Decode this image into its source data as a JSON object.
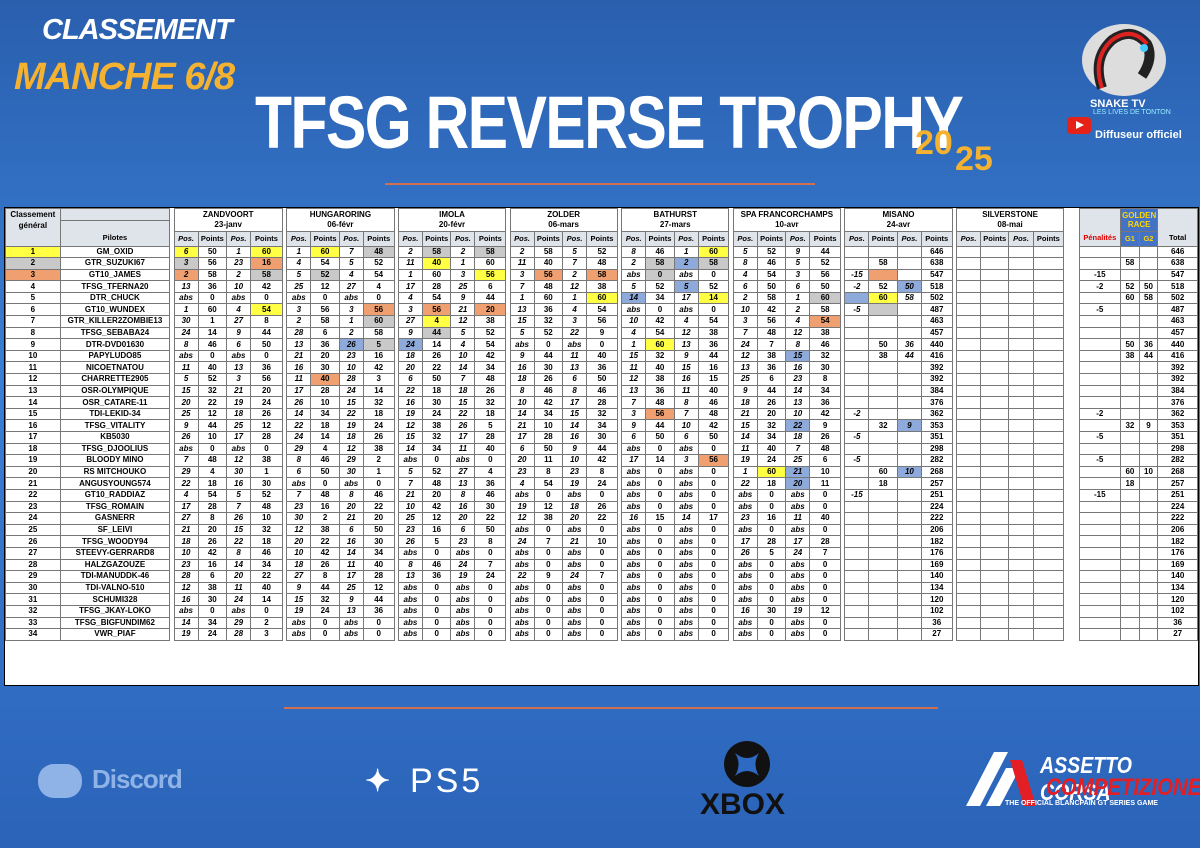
{
  "header": {
    "classement": "CLASSEMENT",
    "manche": "MANCHE 6/8",
    "title": "TFSG REVERSE TROPHY",
    "year_a": "20",
    "year_b": "25"
  },
  "broadcaster": {
    "name": "SNAKE TV",
    "subtitle": "LES LIVES DE TONTON",
    "label": "Diffuseur officiel"
  },
  "table": {
    "col_rank": "Classement général",
    "col_pilots": "Pilotes",
    "col_pos": "Pos.",
    "col_points": "Points",
    "col_penalties": "Pénalités",
    "golden_race": "GOLDEN RACE",
    "col_g1": "G1",
    "col_g2": "G2",
    "col_total": "Total",
    "races": [
      {
        "track": "ZANDVOORT",
        "date": "23-janv"
      },
      {
        "track": "HUNGARORING",
        "date": "06-févr"
      },
      {
        "track": "IMOLA",
        "date": "20-févr"
      },
      {
        "track": "ZOLDER",
        "date": "06-mars"
      },
      {
        "track": "BATHURST",
        "date": "27-mars"
      },
      {
        "track": "SPA FRANCORCHAMPS",
        "date": "10-avr"
      },
      {
        "track": "MISANO",
        "date": "24-avr"
      },
      {
        "track": "SILVERSTONE",
        "date": "08-mai"
      }
    ],
    "rows": [
      [
        "1",
        "GM_OXID",
        "6",
        "50",
        "1",
        "60",
        "1",
        "60",
        "7",
        "48",
        "2",
        "58",
        "2",
        "58",
        "2",
        "58",
        "5",
        "52",
        "8",
        "46",
        "1",
        "60",
        "5",
        "52",
        "9",
        "44",
        "",
        "",
        "",
        "646"
      ],
      [
        "2",
        "GTR_SUZUKI67",
        "3",
        "56",
        "23",
        "16",
        "4",
        "54",
        "5",
        "52",
        "11",
        "40",
        "1",
        "60",
        "11",
        "40",
        "7",
        "48",
        "2",
        "58",
        "2",
        "58",
        "8",
        "46",
        "5",
        "52",
        "",
        "58",
        "",
        "638"
      ],
      [
        "3",
        "GT10_JAMES",
        "2",
        "58",
        "2",
        "58",
        "5",
        "52",
        "4",
        "54",
        "1",
        "60",
        "3",
        "56",
        "3",
        "56",
        "2",
        "58",
        "abs",
        "0",
        "abs",
        "0",
        "4",
        "54",
        "3",
        "56",
        "-15",
        "",
        "",
        "547"
      ],
      [
        "4",
        "TFSG_TFERNA20",
        "13",
        "36",
        "10",
        "42",
        "25",
        "12",
        "27",
        "4",
        "17",
        "28",
        "25",
        "6",
        "7",
        "48",
        "12",
        "38",
        "5",
        "52",
        "5",
        "52",
        "6",
        "50",
        "6",
        "50",
        "-2",
        "52",
        "50",
        "518"
      ],
      [
        "5",
        "DTR_CHUCK",
        "abs",
        "0",
        "abs",
        "0",
        "abs",
        "0",
        "abs",
        "0",
        "4",
        "54",
        "9",
        "44",
        "1",
        "60",
        "1",
        "60",
        "14",
        "34",
        "17",
        "14",
        "2",
        "58",
        "1",
        "60",
        "",
        "60",
        "58",
        "502"
      ],
      [
        "6",
        "GT10_WUNDEX",
        "1",
        "60",
        "4",
        "54",
        "3",
        "56",
        "3",
        "56",
        "3",
        "56",
        "21",
        "20",
        "13",
        "36",
        "4",
        "54",
        "abs",
        "0",
        "abs",
        "0",
        "10",
        "42",
        "2",
        "58",
        "-5",
        "",
        "",
        "487"
      ],
      [
        "7",
        "GTR_KILLER2ZOMBIE13",
        "30",
        "1",
        "27",
        "8",
        "2",
        "58",
        "1",
        "60",
        "27",
        "4",
        "12",
        "38",
        "15",
        "32",
        "3",
        "56",
        "10",
        "42",
        "4",
        "54",
        "3",
        "56",
        "4",
        "54",
        "",
        "",
        "",
        "463"
      ],
      [
        "8",
        "TFSG_SEBABA24",
        "24",
        "14",
        "9",
        "44",
        "28",
        "6",
        "2",
        "58",
        "9",
        "44",
        "5",
        "52",
        "5",
        "52",
        "22",
        "9",
        "4",
        "54",
        "12",
        "38",
        "7",
        "48",
        "12",
        "38",
        "",
        "",
        "",
        "457"
      ],
      [
        "9",
        "DTR-DVD01630",
        "8",
        "46",
        "6",
        "50",
        "13",
        "36",
        "26",
        "5",
        "24",
        "14",
        "4",
        "54",
        "abs",
        "0",
        "abs",
        "0",
        "1",
        "60",
        "13",
        "36",
        "24",
        "7",
        "8",
        "46",
        "",
        "50",
        "36",
        "440"
      ],
      [
        "10",
        "PAPYLUDO85",
        "abs",
        "0",
        "abs",
        "0",
        "21",
        "20",
        "23",
        "16",
        "18",
        "26",
        "10",
        "42",
        "9",
        "44",
        "11",
        "40",
        "15",
        "32",
        "9",
        "44",
        "12",
        "38",
        "15",
        "32",
        "",
        "38",
        "44",
        "416"
      ],
      [
        "11",
        "NICOETNATOU",
        "11",
        "40",
        "13",
        "36",
        "16",
        "30",
        "10",
        "42",
        "20",
        "22",
        "14",
        "34",
        "16",
        "30",
        "13",
        "36",
        "11",
        "40",
        "15",
        "16",
        "13",
        "36",
        "16",
        "30",
        "",
        "",
        "",
        "392"
      ],
      [
        "12",
        "CHARRETTE2905",
        "5",
        "52",
        "3",
        "56",
        "11",
        "40",
        "28",
        "3",
        "6",
        "50",
        "7",
        "48",
        "18",
        "26",
        "6",
        "50",
        "12",
        "38",
        "16",
        "15",
        "25",
        "6",
        "23",
        "8",
        "",
        "",
        "",
        "392"
      ],
      [
        "13",
        "OSR-OLYMPIQUE",
        "15",
        "32",
        "21",
        "20",
        "17",
        "28",
        "24",
        "14",
        "22",
        "18",
        "18",
        "26",
        "8",
        "46",
        "8",
        "46",
        "13",
        "36",
        "11",
        "40",
        "9",
        "44",
        "14",
        "34",
        "",
        "",
        "",
        "384"
      ],
      [
        "14",
        "OSR_CATARE-11",
        "20",
        "22",
        "19",
        "24",
        "26",
        "10",
        "15",
        "32",
        "16",
        "30",
        "15",
        "32",
        "10",
        "42",
        "17",
        "28",
        "7",
        "48",
        "8",
        "46",
        "18",
        "26",
        "13",
        "36",
        "",
        "",
        "",
        "376"
      ],
      [
        "15",
        "TDI-LEKID-34",
        "25",
        "12",
        "18",
        "26",
        "14",
        "34",
        "22",
        "18",
        "19",
        "24",
        "22",
        "18",
        "14",
        "34",
        "15",
        "32",
        "3",
        "56",
        "7",
        "48",
        "21",
        "20",
        "10",
        "42",
        "-2",
        "",
        "",
        "362"
      ],
      [
        "16",
        "TFSG_VITALITY",
        "9",
        "44",
        "25",
        "12",
        "22",
        "18",
        "19",
        "24",
        "12",
        "38",
        "26",
        "5",
        "21",
        "10",
        "14",
        "34",
        "9",
        "44",
        "10",
        "42",
        "15",
        "32",
        "22",
        "9",
        "",
        "32",
        "9",
        "353"
      ],
      [
        "17",
        "KB5030",
        "26",
        "10",
        "17",
        "28",
        "24",
        "14",
        "18",
        "26",
        "15",
        "32",
        "17",
        "28",
        "17",
        "28",
        "16",
        "30",
        "6",
        "50",
        "6",
        "50",
        "14",
        "34",
        "18",
        "26",
        "-5",
        "",
        "",
        "351"
      ],
      [
        "18",
        "TFSG_DJOOLIUS",
        "abs",
        "0",
        "abs",
        "0",
        "29",
        "4",
        "12",
        "38",
        "14",
        "34",
        "11",
        "40",
        "6",
        "50",
        "9",
        "44",
        "abs",
        "0",
        "abs",
        "0",
        "11",
        "40",
        "7",
        "48",
        "",
        "",
        "",
        "298"
      ],
      [
        "19",
        "BLOODY MINO",
        "7",
        "48",
        "12",
        "38",
        "8",
        "46",
        "29",
        "2",
        "abs",
        "0",
        "abs",
        "0",
        "20",
        "11",
        "10",
        "42",
        "17",
        "14",
        "3",
        "56",
        "19",
        "24",
        "25",
        "6",
        "-5",
        "",
        "",
        "282"
      ],
      [
        "20",
        "RS MITCHOUKO",
        "29",
        "4",
        "30",
        "1",
        "6",
        "50",
        "30",
        "1",
        "5",
        "52",
        "27",
        "4",
        "23",
        "8",
        "23",
        "8",
        "abs",
        "0",
        "abs",
        "0",
        "1",
        "60",
        "21",
        "10",
        "",
        "60",
        "10",
        "268"
      ],
      [
        "21",
        "ANGUSYOUNG574",
        "22",
        "18",
        "16",
        "30",
        "abs",
        "0",
        "abs",
        "0",
        "7",
        "48",
        "13",
        "36",
        "4",
        "54",
        "19",
        "24",
        "abs",
        "0",
        "abs",
        "0",
        "22",
        "18",
        "20",
        "11",
        "",
        "18",
        "",
        "257"
      ],
      [
        "22",
        "GT10_RADDIAZ",
        "4",
        "54",
        "5",
        "52",
        "7",
        "48",
        "8",
        "46",
        "21",
        "20",
        "8",
        "46",
        "abs",
        "0",
        "abs",
        "0",
        "abs",
        "0",
        "abs",
        "0",
        "abs",
        "0",
        "abs",
        "0",
        "-15",
        "",
        "",
        "251"
      ],
      [
        "23",
        "TFSG_ROMAIN",
        "17",
        "28",
        "7",
        "48",
        "23",
        "16",
        "20",
        "22",
        "10",
        "42",
        "16",
        "30",
        "19",
        "12",
        "18",
        "26",
        "abs",
        "0",
        "abs",
        "0",
        "abs",
        "0",
        "abs",
        "0",
        "",
        "",
        "",
        "224"
      ],
      [
        "24",
        "GASNERR",
        "27",
        "8",
        "26",
        "10",
        "30",
        "2",
        "21",
        "20",
        "25",
        "12",
        "20",
        "22",
        "12",
        "38",
        "20",
        "22",
        "16",
        "15",
        "14",
        "17",
        "23",
        "16",
        "11",
        "40",
        "",
        "",
        "",
        "222"
      ],
      [
        "25",
        "SF_LEIVI",
        "21",
        "20",
        "15",
        "32",
        "12",
        "38",
        "6",
        "50",
        "23",
        "16",
        "6",
        "50",
        "abs",
        "0",
        "abs",
        "0",
        "abs",
        "0",
        "abs",
        "0",
        "abs",
        "0",
        "abs",
        "0",
        "",
        "",
        "",
        "206"
      ],
      [
        "26",
        "TFSG_WOODY94",
        "18",
        "26",
        "22",
        "18",
        "20",
        "22",
        "16",
        "30",
        "26",
        "5",
        "23",
        "8",
        "24",
        "7",
        "21",
        "10",
        "abs",
        "0",
        "abs",
        "0",
        "17",
        "28",
        "17",
        "28",
        "",
        "",
        "",
        "182"
      ],
      [
        "27",
        "STEEVY-GERRARD8",
        "10",
        "42",
        "8",
        "46",
        "10",
        "42",
        "14",
        "34",
        "abs",
        "0",
        "abs",
        "0",
        "abs",
        "0",
        "abs",
        "0",
        "abs",
        "0",
        "abs",
        "0",
        "26",
        "5",
        "24",
        "7",
        "",
        "",
        "",
        "176"
      ],
      [
        "28",
        "HALZGAZOUZE",
        "23",
        "16",
        "14",
        "34",
        "18",
        "26",
        "11",
        "40",
        "8",
        "46",
        "24",
        "7",
        "abs",
        "0",
        "abs",
        "0",
        "abs",
        "0",
        "abs",
        "0",
        "abs",
        "0",
        "abs",
        "0",
        "",
        "",
        "",
        "169"
      ],
      [
        "29",
        "TDI-MANUDDK-46",
        "28",
        "6",
        "20",
        "22",
        "27",
        "8",
        "17",
        "28",
        "13",
        "36",
        "19",
        "24",
        "22",
        "9",
        "24",
        "7",
        "abs",
        "0",
        "abs",
        "0",
        "abs",
        "0",
        "abs",
        "0",
        "",
        "",
        "",
        "140"
      ],
      [
        "30",
        "TDI-VALNO-510",
        "12",
        "38",
        "11",
        "40",
        "9",
        "44",
        "25",
        "12",
        "abs",
        "0",
        "abs",
        "0",
        "abs",
        "0",
        "abs",
        "0",
        "abs",
        "0",
        "abs",
        "0",
        "abs",
        "0",
        "abs",
        "0",
        "",
        "",
        "",
        "134"
      ],
      [
        "31",
        "SCHUMI328",
        "16",
        "30",
        "24",
        "14",
        "15",
        "32",
        "9",
        "44",
        "abs",
        "0",
        "abs",
        "0",
        "abs",
        "0",
        "abs",
        "0",
        "abs",
        "0",
        "abs",
        "0",
        "abs",
        "0",
        "abs",
        "0",
        "",
        "",
        "",
        "120"
      ],
      [
        "32",
        "TFSG_JKAY-LOKO",
        "abs",
        "0",
        "abs",
        "0",
        "19",
        "24",
        "13",
        "36",
        "abs",
        "0",
        "abs",
        "0",
        "abs",
        "0",
        "abs",
        "0",
        "abs",
        "0",
        "abs",
        "0",
        "16",
        "30",
        "19",
        "12",
        "",
        "",
        "",
        "102"
      ],
      [
        "33",
        "TFSG_BIGFUNDIM62",
        "14",
        "34",
        "29",
        "2",
        "abs",
        "0",
        "abs",
        "0",
        "abs",
        "0",
        "abs",
        "0",
        "abs",
        "0",
        "abs",
        "0",
        "abs",
        "0",
        "abs",
        "0",
        "abs",
        "0",
        "abs",
        "0",
        "",
        "",
        "",
        "36"
      ],
      [
        "34",
        "VWR_PIAF",
        "19",
        "24",
        "28",
        "3",
        "abs",
        "0",
        "abs",
        "0",
        "abs",
        "0",
        "abs",
        "0",
        "abs",
        "0",
        "abs",
        "0",
        "abs",
        "0",
        "abs",
        "0",
        "abs",
        "0",
        "abs",
        "0",
        "",
        "",
        "",
        "27"
      ]
    ],
    "highlights": {
      "0": {
        "0": "y",
        "3": "y",
        "5": "y",
        "7": "s",
        "9": "s",
        "11": "s",
        "19": "y"
      },
      "1": {
        "0": "s",
        "3": "b",
        "9": "y",
        "17": "s",
        "18": "bl",
        "19": "s"
      },
      "2": {
        "0": "b",
        "3": "s",
        "5": "s",
        "11": "y",
        "13": "b",
        "15": "b",
        "17": "s",
        "25": "b"
      },
      "3": {
        "18": "bl",
        "26": "bl"
      },
      "4": {
        "15": "y",
        "16": "bl",
        "19": "y",
        "23": "s",
        "24": "bl",
        "25": "y"
      },
      "5": {
        "3": "y",
        "7": "b",
        "9": "b",
        "11": "b",
        "25": "s"
      },
      "6": {
        "7": "s",
        "9": "y",
        "23": "b"
      },
      "7": {
        "9": "s"
      },
      "8": {
        "6": "bl",
        "7": "s",
        "8": "bl",
        "17": "y"
      },
      "9": {
        "22": "bl"
      },
      "11": {
        "5": "b"
      },
      "14": {
        "17": "b"
      },
      "15": {
        "22": "bl",
        "26": "bl"
      },
      "18": {
        "19": "b"
      },
      "19": {
        "21": "y",
        "22": "bl",
        "26": "bl"
      },
      "20": {
        "22": "bl"
      }
    }
  },
  "footer": {
    "discord": "Discord",
    "ps": "PS5",
    "xbox": "XBOX",
    "acc_line1": "ASSETTO CORSA",
    "acc_line2": "COMPETIZIONE",
    "acc_line3": "THE OFFICIAL BLANCPAIN GT SERIES GAME"
  },
  "colors": {
    "accent_orange": "#f5b230",
    "highlight_yellow": "#ffff44",
    "highlight_silver": "#c9c9c9",
    "highlight_bronze": "#f0a070",
    "highlight_blue": "#8eaadb",
    "penalty_red": "#e00000"
  }
}
